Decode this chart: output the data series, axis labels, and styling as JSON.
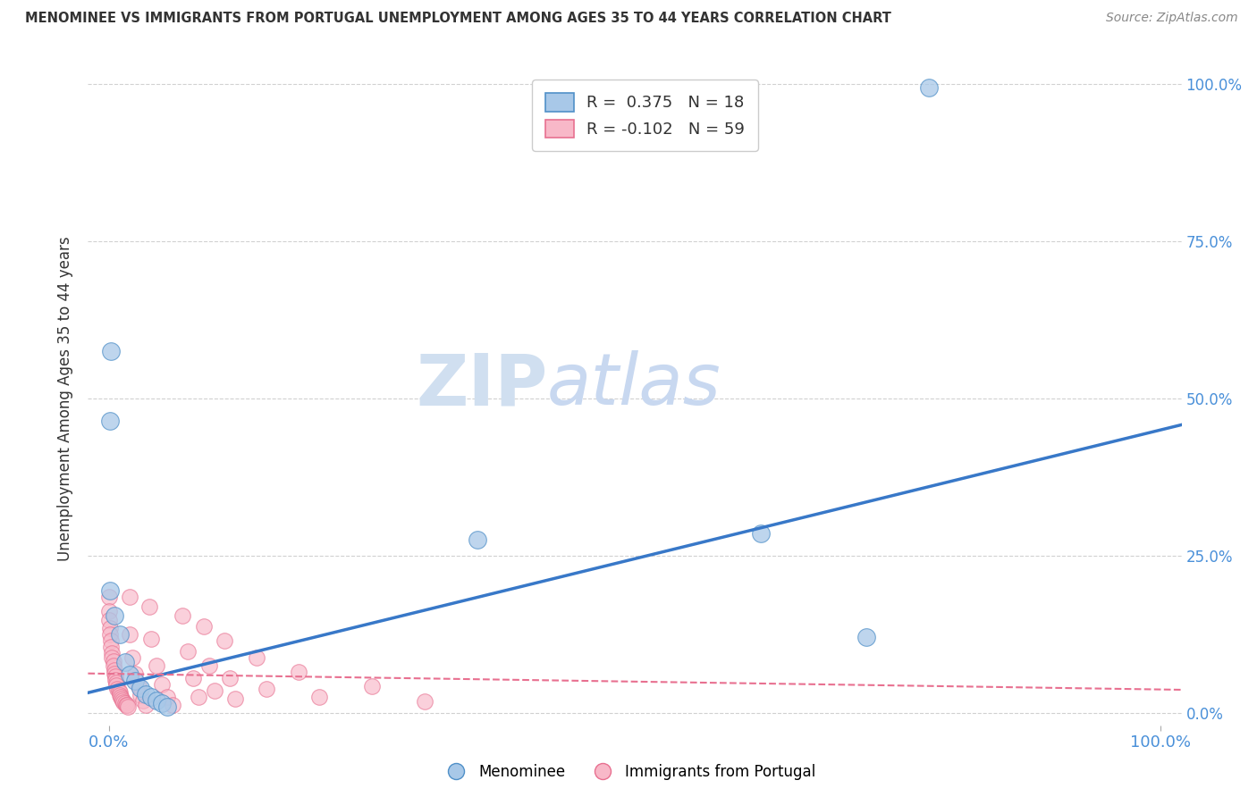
{
  "title": "MENOMINEE VS IMMIGRANTS FROM PORTUGAL UNEMPLOYMENT AMONG AGES 35 TO 44 YEARS CORRELATION CHART",
  "source": "Source: ZipAtlas.com",
  "ylabel": "Unemployment Among Ages 35 to 44 years",
  "legend_1_label": "R =  0.375   N = 18",
  "legend_2_label": "R = -0.102   N = 59",
  "menominee_color": "#a8c8e8",
  "portugal_color": "#f8b8c8",
  "menominee_edge_color": "#5090c8",
  "portugal_edge_color": "#e87090",
  "menominee_line_color": "#3878c8",
  "portugal_line_color": "#e87090",
  "watermark_zip_color": "#c8d8e8",
  "watermark_atlas_color": "#c8d8f0",
  "background_color": "#ffffff",
  "grid_color": "#cccccc",
  "title_color": "#333333",
  "axis_label_color": "#333333",
  "tick_color": "#4a90d9",
  "menominee_points": [
    [
      0.002,
      0.575
    ],
    [
      0.001,
      0.465
    ],
    [
      0.001,
      0.195
    ],
    [
      0.005,
      0.155
    ],
    [
      0.01,
      0.125
    ],
    [
      0.015,
      0.08
    ],
    [
      0.02,
      0.06
    ],
    [
      0.025,
      0.05
    ],
    [
      0.03,
      0.04
    ],
    [
      0.035,
      0.03
    ],
    [
      0.04,
      0.025
    ],
    [
      0.045,
      0.02
    ],
    [
      0.05,
      0.015
    ],
    [
      0.055,
      0.01
    ],
    [
      0.35,
      0.275
    ],
    [
      0.62,
      0.285
    ],
    [
      0.72,
      0.12
    ],
    [
      0.78,
      0.995
    ]
  ],
  "portugal_points": [
    [
      0.0,
      0.185
    ],
    [
      0.0,
      0.162
    ],
    [
      0.0,
      0.148
    ],
    [
      0.001,
      0.135
    ],
    [
      0.001,
      0.125
    ],
    [
      0.002,
      0.115
    ],
    [
      0.002,
      0.105
    ],
    [
      0.003,
      0.095
    ],
    [
      0.003,
      0.088
    ],
    [
      0.004,
      0.082
    ],
    [
      0.004,
      0.075
    ],
    [
      0.005,
      0.068
    ],
    [
      0.005,
      0.062
    ],
    [
      0.006,
      0.058
    ],
    [
      0.006,
      0.052
    ],
    [
      0.007,
      0.048
    ],
    [
      0.007,
      0.043
    ],
    [
      0.008,
      0.038
    ],
    [
      0.009,
      0.035
    ],
    [
      0.01,
      0.032
    ],
    [
      0.01,
      0.028
    ],
    [
      0.011,
      0.025
    ],
    [
      0.012,
      0.022
    ],
    [
      0.013,
      0.019
    ],
    [
      0.014,
      0.017
    ],
    [
      0.015,
      0.015
    ],
    [
      0.016,
      0.013
    ],
    [
      0.017,
      0.012
    ],
    [
      0.018,
      0.01
    ],
    [
      0.02,
      0.185
    ],
    [
      0.02,
      0.125
    ],
    [
      0.022,
      0.088
    ],
    [
      0.025,
      0.062
    ],
    [
      0.028,
      0.042
    ],
    [
      0.03,
      0.028
    ],
    [
      0.032,
      0.019
    ],
    [
      0.035,
      0.012
    ],
    [
      0.038,
      0.168
    ],
    [
      0.04,
      0.118
    ],
    [
      0.045,
      0.075
    ],
    [
      0.05,
      0.045
    ],
    [
      0.055,
      0.025
    ],
    [
      0.06,
      0.012
    ],
    [
      0.07,
      0.155
    ],
    [
      0.075,
      0.098
    ],
    [
      0.08,
      0.055
    ],
    [
      0.085,
      0.025
    ],
    [
      0.09,
      0.138
    ],
    [
      0.095,
      0.075
    ],
    [
      0.1,
      0.035
    ],
    [
      0.11,
      0.115
    ],
    [
      0.115,
      0.055
    ],
    [
      0.12,
      0.022
    ],
    [
      0.14,
      0.088
    ],
    [
      0.15,
      0.038
    ],
    [
      0.18,
      0.065
    ],
    [
      0.2,
      0.025
    ],
    [
      0.25,
      0.042
    ],
    [
      0.3,
      0.018
    ]
  ],
  "xmin": 0.0,
  "xmax": 1.0,
  "ymin": 0.0,
  "ymax": 1.0,
  "ytick_positions": [
    0.0,
    0.25,
    0.5,
    0.75,
    1.0
  ],
  "ytick_labels": [
    "0.0%",
    "25.0%",
    "50.0%",
    "75.0%",
    "100.0%"
  ],
  "xtick_positions": [
    0.0,
    1.0
  ],
  "xtick_labels": [
    "0.0%",
    "100.0%"
  ]
}
